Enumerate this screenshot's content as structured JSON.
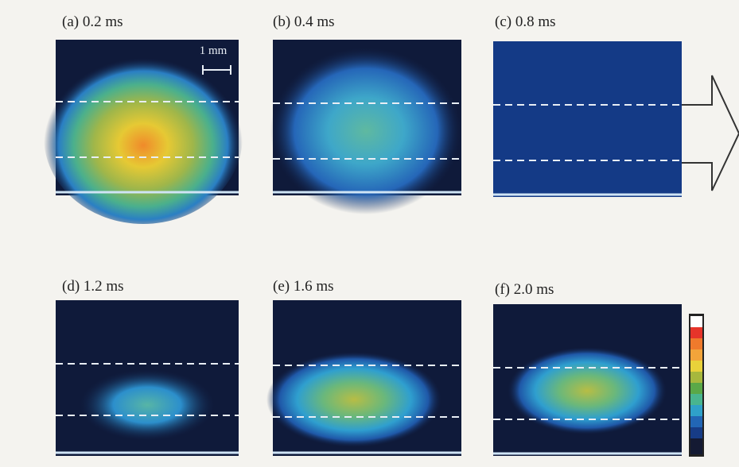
{
  "panels": [
    {
      "label": "(a) 0.2 ms"
    },
    {
      "label": "(b) 0.4 ms"
    },
    {
      "label": "(c) 0.8 ms"
    },
    {
      "label": "(d) 1.2 ms"
    },
    {
      "label": "(e) 1.6 ms"
    },
    {
      "label": "(f) 2.0 ms"
    }
  ],
  "scale_bar": "1 mm"
}
